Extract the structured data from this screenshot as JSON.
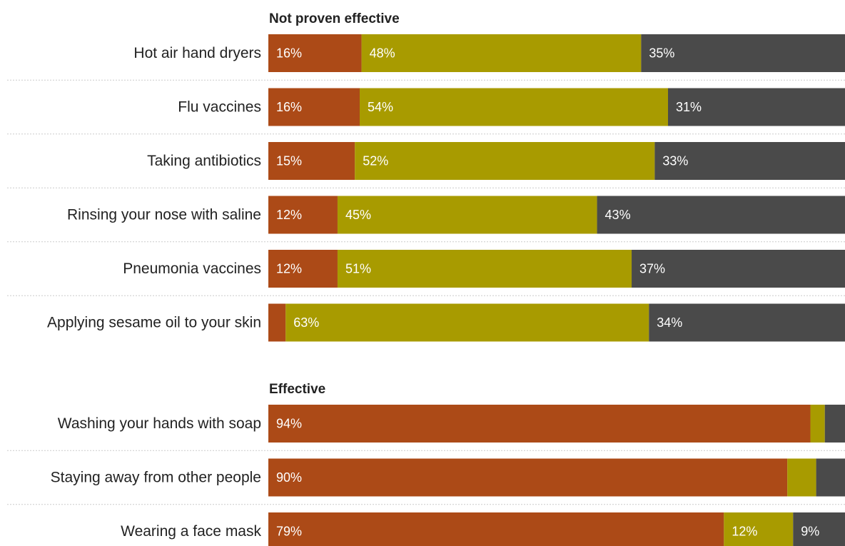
{
  "chart_data": {
    "type": "bar",
    "orientation": "horizontal",
    "stacked": true,
    "segment_colors": [
      "#ac4a17",
      "#a89b00",
      "#4a4a4a"
    ],
    "groups": [
      {
        "title": "Not proven effective",
        "rows": [
          {
            "label": "Hot air hand dryers",
            "values": [
              16,
              48,
              35
            ],
            "value_labels": [
              "16%",
              "48%",
              "35%"
            ]
          },
          {
            "label": "Flu vaccines",
            "values": [
              16,
              54,
              31
            ],
            "value_labels": [
              "16%",
              "54%",
              "31%"
            ]
          },
          {
            "label": "Taking antibiotics",
            "values": [
              15,
              52,
              33
            ],
            "value_labels": [
              "15%",
              "52%",
              "33%"
            ]
          },
          {
            "label": "Rinsing your nose with saline",
            "values": [
              12,
              45,
              43
            ],
            "value_labels": [
              "12%",
              "45%",
              "43%"
            ]
          },
          {
            "label": "Pneumonia vaccines",
            "values": [
              12,
              51,
              37
            ],
            "value_labels": [
              "12%",
              "51%",
              "37%"
            ]
          },
          {
            "label": "Applying sesame oil to your skin",
            "values": [
              3,
              63,
              34
            ],
            "value_labels": [
              "",
              "63%",
              "34%"
            ]
          }
        ]
      },
      {
        "title": "Effective",
        "rows": [
          {
            "label": "Washing your hands with soap",
            "values": [
              94,
              2.5,
              3.5
            ],
            "value_labels": [
              "94%",
              "",
              ""
            ]
          },
          {
            "label": "Staying away from other people",
            "values": [
              90,
              5,
              5
            ],
            "value_labels": [
              "90%",
              "",
              ""
            ]
          },
          {
            "label": "Wearing a face mask",
            "values": [
              79,
              12,
              9
            ],
            "value_labels": [
              "79%",
              "12%",
              "9%"
            ]
          }
        ]
      }
    ]
  }
}
